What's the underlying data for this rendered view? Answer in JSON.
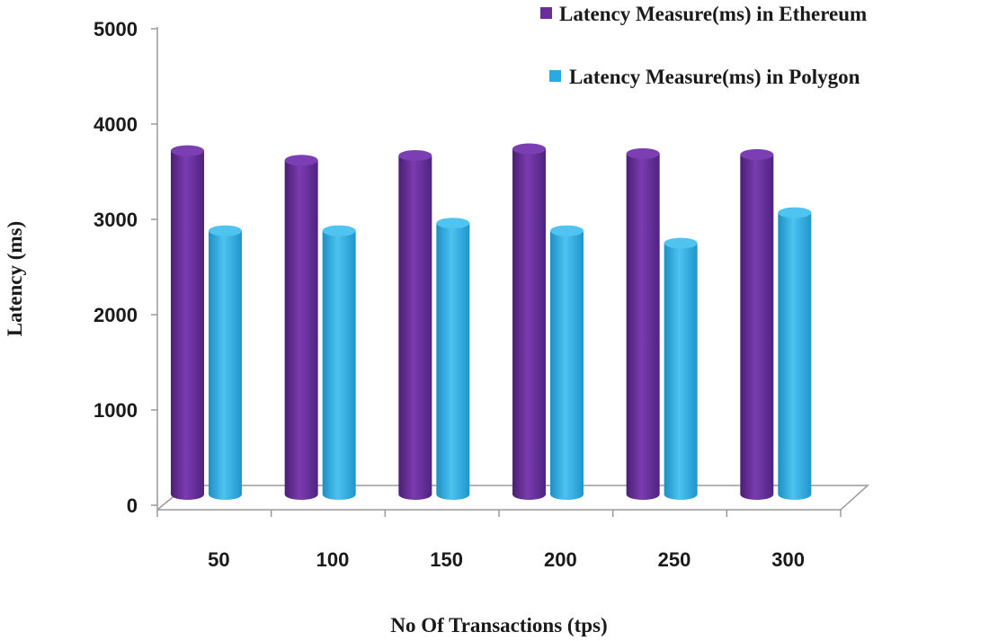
{
  "chart_data": {
    "type": "bar",
    "title": "",
    "xlabel": "No Of Transactions (tps)",
    "ylabel": "Latency (ms)",
    "ylim": [
      0,
      5000
    ],
    "yticks": [
      0,
      1000,
      2000,
      3000,
      4000,
      5000
    ],
    "categories": [
      "50",
      "100",
      "150",
      "200",
      "250",
      "300"
    ],
    "series": [
      {
        "name": "Latency Measure(ms) in Ethereum",
        "color": "#6a2f9c",
        "values": [
          3720,
          3620,
          3670,
          3740,
          3690,
          3680
        ]
      },
      {
        "name": "Latency Measure(ms) in Polygon",
        "color": "#29abe2",
        "values": [
          2880,
          2880,
          2960,
          2880,
          2750,
          3070
        ]
      }
    ],
    "legend_position": "top-right",
    "grid": false
  }
}
